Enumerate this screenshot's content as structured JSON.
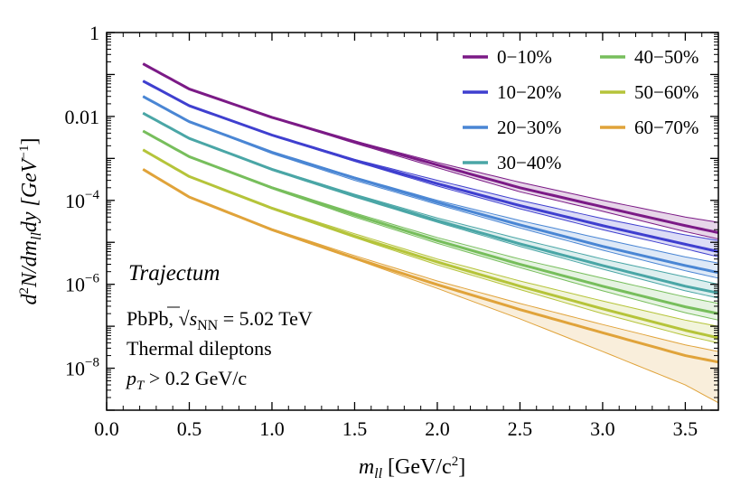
{
  "chart_data": {
    "type": "line",
    "scale_y": "log",
    "xlim": [
      0.0,
      3.7
    ],
    "ylim": [
      1e-09,
      1
    ],
    "x_ticks": [
      {
        "value": 0.0,
        "label": "0.0"
      },
      {
        "value": 0.5,
        "label": "0.5"
      },
      {
        "value": 1.0,
        "label": "1.0"
      },
      {
        "value": 1.5,
        "label": "1.5"
      },
      {
        "value": 2.0,
        "label": "2.0"
      },
      {
        "value": 2.5,
        "label": "2.5"
      },
      {
        "value": 3.0,
        "label": "3.0"
      },
      {
        "value": 3.5,
        "label": "3.5"
      }
    ],
    "y_ticks": [
      {
        "value": 1,
        "base": "1",
        "exp": ""
      },
      {
        "value": 0.01,
        "base": "0.01",
        "exp": ""
      },
      {
        "value": 0.0001,
        "base": "10",
        "exp": "−4"
      },
      {
        "value": 1e-06,
        "base": "10",
        "exp": "−6"
      },
      {
        "value": 1e-08,
        "base": "10",
        "exp": "−8"
      }
    ],
    "xlabel": {
      "main": "m",
      "sub": "ll",
      "unit_pre": " [GeV/c",
      "unit_sup": "2",
      "unit_post": "]"
    },
    "ylabel": {
      "d": "d",
      "sup2": "2",
      "rest": "N/dm",
      "sub": "ll",
      "dy": "dy [GeV",
      "exp": "−1",
      "close": "]"
    },
    "legend_position": "top-right",
    "annotation": {
      "title": "Trajectum",
      "line1_pre": "PbPb, ",
      "line1_s": "s",
      "line1_sub": "NN",
      "line1_post": " = 5.02 TeV",
      "line2": "Thermal dileptons",
      "line3_p": "p",
      "line3_sub": "T",
      "line3_post": " > 0.2 GeV/c"
    },
    "series": [
      {
        "name": "0−10%",
        "color": "#7b1a86",
        "x": [
          0.22,
          0.5,
          1.0,
          1.5,
          2.0,
          2.5,
          3.0,
          3.5,
          3.7
        ],
        "y": [
          0.18,
          0.045,
          0.0095,
          0.0025,
          0.0007,
          0.0002,
          7e-05,
          2.5e-05,
          1.7e-05
        ],
        "band_upper": [
          0.18,
          0.045,
          0.0095,
          0.0026,
          0.0008,
          0.00027,
          0.0001,
          4e-05,
          3e-05
        ],
        "band_lower": [
          0.18,
          0.045,
          0.0093,
          0.0023,
          0.0006,
          0.00016,
          5.5e-05,
          1.8e-05,
          1.2e-05
        ]
      },
      {
        "name": "10−20%",
        "color": "#3f3fcf",
        "x": [
          0.22,
          0.5,
          1.0,
          1.5,
          2.0,
          2.5,
          3.0,
          3.5,
          3.7
        ],
        "y": [
          0.07,
          0.018,
          0.0036,
          0.0009,
          0.00025,
          7.5e-05,
          2.5e-05,
          9e-06,
          6e-06
        ],
        "band_upper": [
          0.07,
          0.018,
          0.0037,
          0.00095,
          0.0003,
          0.0001,
          3.7e-05,
          1.5e-05,
          1.1e-05
        ],
        "band_lower": [
          0.07,
          0.018,
          0.0035,
          0.00085,
          0.00022,
          6.3e-05,
          2e-05,
          7e-06,
          4.5e-06
        ]
      },
      {
        "name": "20−30%",
        "color": "#4a86d4",
        "x": [
          0.22,
          0.5,
          1.0,
          1.5,
          2.0,
          2.5,
          3.0,
          3.5,
          3.7
        ],
        "y": [
          0.03,
          0.0075,
          0.0014,
          0.00034,
          9e-05,
          2.6e-05,
          8e-06,
          2.8e-06,
          1.9e-06
        ],
        "band_upper": [
          0.03,
          0.0075,
          0.00145,
          0.00036,
          0.0001,
          3.3e-05,
          1.2e-05,
          4.5e-06,
          3.2e-06
        ],
        "band_lower": [
          0.03,
          0.0074,
          0.0013,
          0.0003,
          8e-05,
          2.2e-05,
          6.5e-06,
          2.1e-06,
          1.4e-06
        ]
      },
      {
        "name": "30−40%",
        "color": "#4aa6a6",
        "x": [
          0.22,
          0.5,
          1.0,
          1.5,
          2.0,
          2.5,
          3.0,
          3.5,
          3.7
        ],
        "y": [
          0.012,
          0.003,
          0.00055,
          0.00013,
          3.3e-05,
          9.2e-06,
          2.8e-06,
          9e-07,
          6.2e-07
        ],
        "band_upper": [
          0.012,
          0.003,
          0.00057,
          0.00014,
          3.8e-05,
          1.2e-05,
          4e-06,
          1.5e-06,
          1e-06
        ],
        "band_lower": [
          0.012,
          0.003,
          0.00052,
          0.00012,
          3e-05,
          8e-06,
          2.3e-06,
          7e-07,
          4.7e-07
        ]
      },
      {
        "name": "40−50%",
        "color": "#77be5c",
        "x": [
          0.22,
          0.5,
          1.0,
          1.5,
          2.0,
          2.5,
          3.0,
          3.5,
          3.7
        ],
        "y": [
          0.0045,
          0.0011,
          0.0002,
          4.5e-05,
          1.1e-05,
          3e-06,
          9e-07,
          2.9e-07,
          2e-07
        ],
        "band_upper": [
          0.0045,
          0.0011,
          0.00021,
          5e-05,
          1.3e-05,
          4e-06,
          1.4e-06,
          5e-07,
          3.5e-07
        ],
        "band_lower": [
          0.0045,
          0.0011,
          0.00019,
          4e-05,
          9.5e-06,
          2.5e-06,
          7e-07,
          2.1e-07,
          1.4e-07
        ]
      },
      {
        "name": "50−60%",
        "color": "#b5c43a",
        "x": [
          0.22,
          0.5,
          1.0,
          1.5,
          2.0,
          2.5,
          3.0,
          3.5,
          3.7
        ],
        "y": [
          0.0016,
          0.00037,
          6.5e-05,
          1.4e-05,
          3.4e-06,
          9e-07,
          2.6e-07,
          8e-08,
          5.3e-08
        ],
        "band_upper": [
          0.0016,
          0.00037,
          6.8e-05,
          1.6e-05,
          4e-06,
          1.2e-06,
          4e-07,
          1.4e-07,
          1e-07
        ],
        "band_lower": [
          0.0016,
          0.00037,
          6.2e-05,
          1.3e-05,
          2.9e-06,
          7.5e-07,
          2e-07,
          6e-08,
          4e-08
        ]
      },
      {
        "name": "60−70%",
        "color": "#e0a33a",
        "x": [
          0.22,
          0.5,
          1.0,
          1.5,
          2.0,
          2.5,
          3.0,
          3.5,
          3.7
        ],
        "y": [
          0.00055,
          0.00012,
          2e-05,
          4.2e-06,
          9.8e-07,
          2.5e-07,
          7e-08,
          2e-08,
          1.4e-08
        ],
        "band_upper": [
          0.00055,
          0.00012,
          2.1e-05,
          4.8e-06,
          1.2e-06,
          3.5e-07,
          1.1e-07,
          3.6e-08,
          2.5e-08
        ],
        "band_lower": [
          0.00055,
          0.00012,
          1.9e-05,
          4e-06,
          8e-07,
          1.5e-07,
          2.5e-08,
          4e-09,
          1.5e-09
        ]
      }
    ]
  }
}
